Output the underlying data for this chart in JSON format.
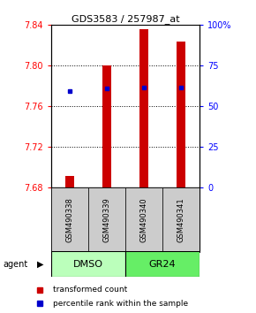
{
  "title": "GDS3583 / 257987_at",
  "samples": [
    "GSM490338",
    "GSM490339",
    "GSM490340",
    "GSM490341"
  ],
  "bar_bottom": 7.68,
  "bar_tops": [
    7.692,
    7.8,
    7.836,
    7.824
  ],
  "blue_markers": [
    7.775,
    7.778,
    7.779,
    7.779
  ],
  "ylim": [
    7.68,
    7.84
  ],
  "yticks_left": [
    7.68,
    7.72,
    7.76,
    7.8,
    7.84
  ],
  "yticks_right": [
    0,
    25,
    50,
    75,
    100
  ],
  "bar_color": "#cc0000",
  "marker_color": "#0000cc",
  "group_labels": [
    "DMSO",
    "GR24"
  ],
  "dmso_color": "#bbffbb",
  "gr24_color": "#66ee66",
  "agent_label": "agent",
  "legend_items": [
    {
      "color": "#cc0000",
      "label": "transformed count"
    },
    {
      "color": "#0000cc",
      "label": "percentile rank within the sample"
    }
  ],
  "bar_width": 0.25,
  "title_fontsize": 8,
  "tick_fontsize": 7,
  "sample_fontsize": 6,
  "group_fontsize": 8
}
